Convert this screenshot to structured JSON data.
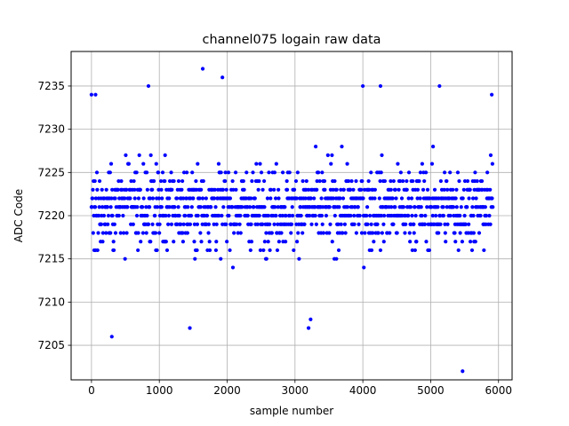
{
  "chart_data": {
    "type": "scatter",
    "title": "channel075 logain raw data",
    "xlabel": "sample number",
    "ylabel": "ADC Code",
    "xlim": [
      -300,
      6200
    ],
    "ylim": [
      7201,
      7239
    ],
    "xticks": [
      0,
      1000,
      2000,
      3000,
      4000,
      5000,
      6000
    ],
    "xtick_labels": [
      "0",
      "1000",
      "2000",
      "3000",
      "4000",
      "5000",
      "6000"
    ],
    "yticks": [
      7205,
      7210,
      7215,
      7220,
      7225,
      7230,
      7235
    ],
    "ytick_labels": [
      "7205",
      "7210",
      "7215",
      "7220",
      "7225",
      "7230",
      "7235"
    ],
    "grid": true,
    "marker_color": "#0000ff",
    "series": [
      {
        "n_samples": 5920,
        "x_range": [
          0,
          5919
        ],
        "y_range": [
          7202,
          7237
        ],
        "core_range": [
          7215,
          7227
        ],
        "outliers": [
          {
            "x": 0,
            "y": 7234
          },
          {
            "x": 60,
            "y": 7234
          },
          {
            "x": 300,
            "y": 7206
          },
          {
            "x": 840,
            "y": 7235
          },
          {
            "x": 1450,
            "y": 7207
          },
          {
            "x": 1640,
            "y": 7237
          },
          {
            "x": 1930,
            "y": 7236
          },
          {
            "x": 3200,
            "y": 7207
          },
          {
            "x": 3230,
            "y": 7208
          },
          {
            "x": 4000,
            "y": 7235
          },
          {
            "x": 4260,
            "y": 7235
          },
          {
            "x": 5130,
            "y": 7235
          },
          {
            "x": 5470,
            "y": 7202
          },
          {
            "x": 5900,
            "y": 7234
          }
        ]
      }
    ]
  }
}
